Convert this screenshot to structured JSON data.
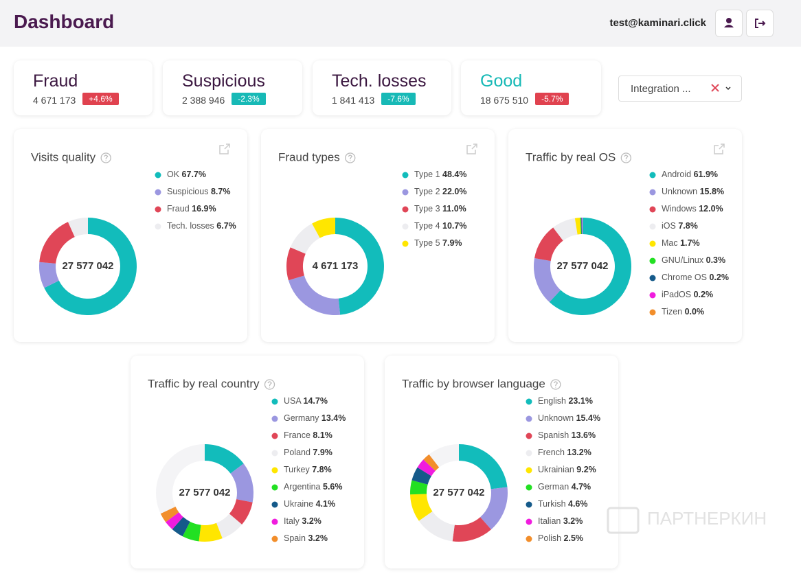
{
  "header": {
    "title": "Dashboard",
    "user": "test@kaminari.click"
  },
  "kpis": [
    {
      "title": "Fraud",
      "value": "4 671 173",
      "change": "+4.6%",
      "title_color": "#3b1740",
      "badge_color": "#e0424f"
    },
    {
      "title": "Suspicious",
      "value": "2 388 946",
      "change": "-2.3%",
      "title_color": "#3b1740",
      "badge_color": "#17b9b6"
    },
    {
      "title": "Tech. losses",
      "value": "1 841 413",
      "change": "-7.6%",
      "title_color": "#3b1740",
      "badge_color": "#17b9b6"
    },
    {
      "title": "Good",
      "value": "18 675 510",
      "change": "-5.7%",
      "title_color": "#17b9b6",
      "badge_color": "#e0424f"
    }
  ],
  "filter": {
    "label": "Integration ..."
  },
  "watermark": "ПАРТНЕРКИН",
  "chart_data": [
    {
      "type": "donut",
      "title": "Visits quality",
      "total": "27 577 042",
      "categories": [
        "OK",
        "Suspicious",
        "Fraud",
        "Tech. losses"
      ],
      "values": [
        67.7,
        8.7,
        16.9,
        6.7
      ],
      "value_labels": [
        "67.7%",
        "8.7%",
        "16.9%",
        "6.7%"
      ],
      "colors": [
        "#12bcbb",
        "#9b97e0",
        "#e04657",
        "#ededf0"
      ]
    },
    {
      "type": "donut",
      "title": "Fraud types",
      "total": "4 671 173",
      "categories": [
        "Type 1",
        "Type 2",
        "Type 3",
        "Type 4",
        "Type 5"
      ],
      "values": [
        48.4,
        22.0,
        11.0,
        10.7,
        7.9
      ],
      "value_labels": [
        "48.4%",
        "22.0%",
        "11.0%",
        "10.7%",
        "7.9%"
      ],
      "colors": [
        "#12bcbb",
        "#9b97e0",
        "#e04657",
        "#ededf0",
        "#ffe600"
      ]
    },
    {
      "type": "donut",
      "title": "Traffic by real OS",
      "total": "27 577 042",
      "categories": [
        "Android",
        "Unknown",
        "Windows",
        "iOS",
        "Mac",
        "GNU/Linux",
        "Chrome OS",
        "iPadOS",
        "Tizen"
      ],
      "values": [
        61.9,
        15.8,
        12.0,
        7.8,
        1.7,
        0.3,
        0.2,
        0.2,
        0.0
      ],
      "value_labels": [
        "61.9%",
        "15.8%",
        "12.0%",
        "7.8%",
        "1.7%",
        "0.3%",
        "0.2%",
        "0.2%",
        "0.0%"
      ],
      "colors": [
        "#12bcbb",
        "#9b97e0",
        "#e04657",
        "#ededf0",
        "#ffe600",
        "#22e022",
        "#155a8a",
        "#f01cde",
        "#f28e2b"
      ]
    },
    {
      "type": "donut",
      "title": "Traffic by real country",
      "total": "27 577 042",
      "categories": [
        "USA",
        "Germany",
        "France",
        "Poland",
        "Turkey",
        "Argentina",
        "Ukraine",
        "Italy",
        "Spain"
      ],
      "values": [
        14.7,
        13.4,
        8.1,
        7.9,
        7.8,
        5.6,
        4.1,
        3.2,
        3.2
      ],
      "value_labels": [
        "14.7%",
        "13.4%",
        "8.1%",
        "7.9%",
        "7.8%",
        "5.6%",
        "4.1%",
        "3.2%",
        "3.2%"
      ],
      "colors": [
        "#12bcbb",
        "#9b97e0",
        "#e04657",
        "#ededf0",
        "#ffe600",
        "#22e022",
        "#155a8a",
        "#f01cde",
        "#f28e2b"
      ]
    },
    {
      "type": "donut",
      "title": "Traffic by browser language",
      "total": "27 577 042",
      "categories": [
        "English",
        "Unknown",
        "Spanish",
        "French",
        "Ukrainian",
        "German",
        "Turkish",
        "Italian",
        "Polish"
      ],
      "values": [
        23.1,
        15.4,
        13.6,
        13.2,
        9.2,
        4.7,
        4.6,
        3.2,
        2.5
      ],
      "value_labels": [
        "23.1%",
        "15.4%",
        "13.6%",
        "13.2%",
        "9.2%",
        "4.7%",
        "4.6%",
        "3.2%",
        "2.5%"
      ],
      "colors": [
        "#12bcbb",
        "#9b97e0",
        "#e04657",
        "#ededf0",
        "#ffe600",
        "#22e022",
        "#155a8a",
        "#f01cde",
        "#f28e2b"
      ]
    }
  ]
}
